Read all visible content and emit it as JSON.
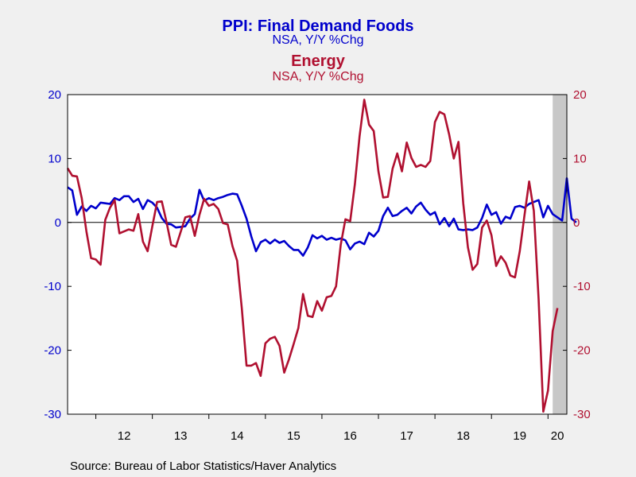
{
  "chart_data": {
    "type": "line",
    "title": "PPI: Final Demand Foods",
    "subtitle": "NSA, Y/Y %Chg",
    "title2": "Energy",
    "subtitle2": "NSA, Y/Y %Chg",
    "source": "Source:  Bureau of Labor Statistics/Haver Analytics",
    "x_start": 2011.5,
    "x_end": 2020.3333,
    "ylim": [
      -30,
      20
    ],
    "yticks": [
      -30,
      -20,
      -10,
      0,
      10,
      20
    ],
    "yticks_right": [
      -30,
      -20,
      -10,
      0,
      10,
      20
    ],
    "year_ticks": [
      {
        "label": "12",
        "year": 2012
      },
      {
        "label": "13",
        "year": 2013
      },
      {
        "label": "14",
        "year": 2014
      },
      {
        "label": "15",
        "year": 2015
      },
      {
        "label": "16",
        "year": 2016
      },
      {
        "label": "17",
        "year": 2017
      },
      {
        "label": "18",
        "year": 2018
      },
      {
        "label": "19",
        "year": 2019
      },
      {
        "label": "20",
        "year": 2020
      }
    ],
    "recession": {
      "start": 2020.0833,
      "end": 2020.4167
    },
    "colors": {
      "foods": "#0000cc",
      "energy": "#b01030",
      "recession": "#c8c8c8",
      "zero_line": "#000000"
    },
    "series": [
      {
        "key": "foods",
        "start": "2011-07",
        "values": [
          5.5,
          5.0,
          1.2,
          2.5,
          1.8,
          2.6,
          2.2,
          3.1,
          3.0,
          2.9,
          3.8,
          3.5,
          4.1,
          4.1,
          3.2,
          3.7,
          2.1,
          3.5,
          3.1,
          2.3,
          0.7,
          -0.2,
          -0.3,
          -0.8,
          -0.7,
          -0.6,
          0.6,
          1.3,
          5.1,
          3.4,
          3.8,
          3.5,
          3.8,
          4.0,
          4.3,
          4.5,
          4.4,
          2.6,
          0.6,
          -2.2,
          -4.5,
          -3.1,
          -2.7,
          -3.3,
          -2.7,
          -3.2,
          -2.9,
          -3.7,
          -4.3,
          -4.3,
          -5.2,
          -3.9,
          -2.0,
          -2.5,
          -2.1,
          -2.7,
          -2.4,
          -2.7,
          -2.5,
          -2.8,
          -4.2,
          -3.3,
          -3.0,
          -3.4,
          -1.6,
          -2.2,
          -1.3,
          1.0,
          2.3,
          1.0,
          1.2,
          1.8,
          2.3,
          1.4,
          2.5,
          3.1,
          2.0,
          1.2,
          1.6,
          -0.3,
          0.7,
          -0.6,
          0.6,
          -1.1,
          -1.2,
          -1.1,
          -1.2,
          -0.8,
          0.7,
          2.8,
          1.2,
          1.6,
          -0.2,
          0.9,
          0.6,
          2.4,
          2.6,
          2.3,
          2.9,
          3.2,
          3.5,
          0.8,
          2.6,
          1.3,
          0.8,
          0.3,
          6.9,
          0.6,
          0.0
        ]
      },
      {
        "key": "energy",
        "start": "2011-07",
        "values": [
          8.5,
          7.3,
          7.2,
          3.8,
          -1.4,
          -5.6,
          -5.8,
          -6.6,
          0.4,
          2.3,
          3.5,
          -1.7,
          -1.4,
          -1.1,
          -1.3,
          1.3,
          -3.0,
          -4.5,
          -0.6,
          3.2,
          3.3,
          0.1,
          -3.5,
          -3.8,
          -1.5,
          0.8,
          1.0,
          -2.1,
          1.2,
          3.7,
          2.6,
          2.9,
          2.1,
          -0.1,
          -0.3,
          -3.7,
          -6.0,
          -13.5,
          -22.4,
          -22.4,
          -22.0,
          -24.0,
          -18.9,
          -18.2,
          -17.9,
          -19.3,
          -23.5,
          -21.4,
          -19.0,
          -16.5,
          -11.2,
          -14.6,
          -14.8,
          -12.3,
          -13.8,
          -11.7,
          -11.5,
          -10.0,
          -3.5,
          0.5,
          0.2,
          6.0,
          13.5,
          19.2,
          15.3,
          14.3,
          8.0,
          3.9,
          4.0,
          8.4,
          10.8,
          8.0,
          12.5,
          10.1,
          8.7,
          9.0,
          8.7,
          9.6,
          15.7,
          17.3,
          16.9,
          13.8,
          10.0,
          12.6,
          3.0,
          -3.9,
          -7.4,
          -6.5,
          -0.8,
          0.3,
          -2.0,
          -6.8,
          -5.3,
          -6.3,
          -8.3,
          -8.6,
          -4.5,
          1.1,
          6.4,
          1.8,
          -12.0,
          -29.6,
          -26.3,
          -17.0,
          -13.4
        ]
      }
    ]
  }
}
